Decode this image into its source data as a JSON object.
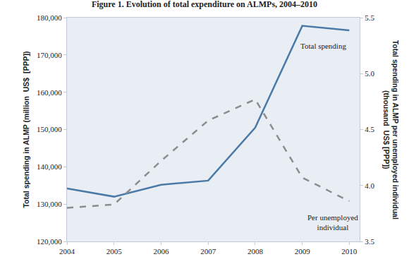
{
  "chart_data": {
    "type": "line",
    "title": "Figure 1. Evolution of total expenditure on ALMPs, 2004–2010",
    "categories": [
      "2004",
      "2005",
      "2006",
      "2007",
      "2008",
      "2009",
      "2010"
    ],
    "series": [
      {
        "name": "Total spending",
        "color": "#4a7aa8",
        "line_style": "solid",
        "values": [
          134200,
          132000,
          135200,
          136300,
          150500,
          177800,
          176600
        ]
      },
      {
        "name": "Per unemployed\nindividual",
        "color": "#8c8c8c",
        "line_style": "dash",
        "axis": "y2",
        "values": [
          3.8,
          3.83,
          4.22,
          4.58,
          4.77,
          4.07,
          3.86
        ]
      }
    ],
    "y_label": "Total spending in ALMP (million  US$  [PPP])",
    "y2_label": "Total spending in ALMP per unemployed individual\n(thousand  US$ [PPP])",
    "ylim": [
      120000,
      180000
    ],
    "yticks": [
      {
        "value": 120000,
        "label": "120,000"
      },
      {
        "value": 130000,
        "label": "130,000"
      },
      {
        "value": 140000,
        "label": "140,000"
      },
      {
        "value": 150000,
        "label": "150,000"
      },
      {
        "value": 160000,
        "label": "160,000"
      },
      {
        "value": 170000,
        "label": "170,000"
      },
      {
        "value": 180000,
        "label": "180,000"
      }
    ],
    "y2lim": [
      3.5,
      5.5
    ],
    "y2ticks": [
      3.5,
      {
        "value": 4.0,
        "label": "4.0"
      },
      4.5,
      {
        "value": 5.0,
        "label": "5.0"
      },
      5.5
    ],
    "grid": false
  }
}
